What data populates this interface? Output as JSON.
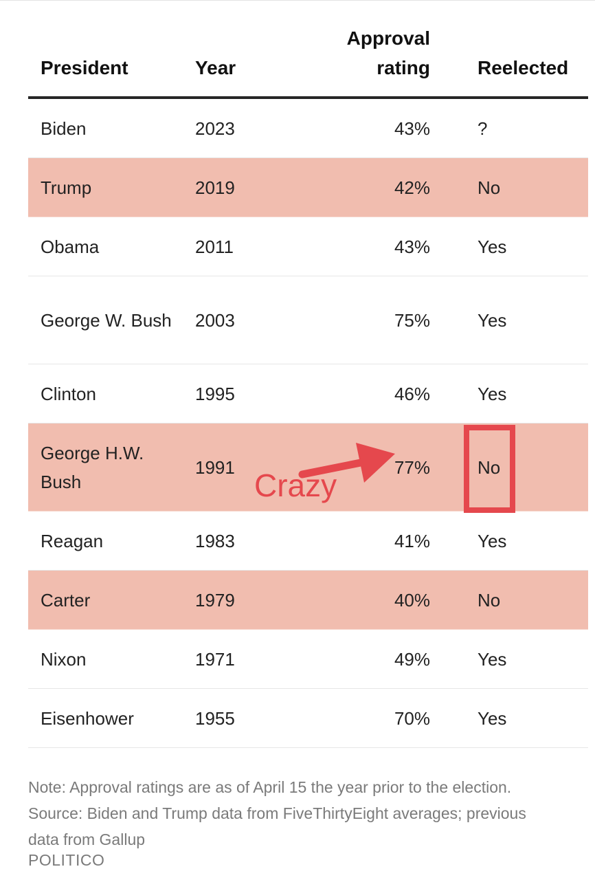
{
  "chart_data": {
    "type": "table",
    "columns": {
      "president": "President",
      "year": "Year",
      "approval_line1": "Approval",
      "approval_line2": "rating",
      "reelected": "Reelected"
    },
    "rows": [
      {
        "president": "Biden",
        "year": "2023",
        "approval": "43%",
        "reelected": "?",
        "highlight": false
      },
      {
        "president": "Trump",
        "year": "2019",
        "approval": "42%",
        "reelected": "No",
        "highlight": true
      },
      {
        "president": "Obama",
        "year": "2011",
        "approval": "43%",
        "reelected": "Yes",
        "highlight": false
      },
      {
        "president": "George W. Bush",
        "year": "2003",
        "approval": "75%",
        "reelected": "Yes",
        "highlight": false
      },
      {
        "president": "Clinton",
        "year": "1995",
        "approval": "46%",
        "reelected": "Yes",
        "highlight": false
      },
      {
        "president": "George H.W. Bush",
        "year": "1991",
        "approval": "77%",
        "reelected": "No",
        "highlight": true
      },
      {
        "president": "Reagan",
        "year": "1983",
        "approval": "41%",
        "reelected": "Yes",
        "highlight": false
      },
      {
        "president": "Carter",
        "year": "1979",
        "approval": "40%",
        "reelected": "No",
        "highlight": true
      },
      {
        "president": "Nixon",
        "year": "1971",
        "approval": "49%",
        "reelected": "Yes",
        "highlight": false
      },
      {
        "president": "Eisenhower",
        "year": "1955",
        "approval": "70%",
        "reelected": "Yes",
        "highlight": false
      }
    ],
    "notes": [
      "Note: Approval ratings are as of April 15 the year prior to the election.",
      "Source: Biden and Trump data from FiveThirtyEight averages; previous",
      "data from Gallup"
    ],
    "source_brand": "POLITICO"
  },
  "annotation": {
    "text": "Crazy",
    "color": "#e5484d"
  },
  "colors": {
    "highlight_row": "#f1bdaf",
    "annotation": "#e5484d",
    "header_rule": "#262626",
    "note_text": "#7a7a7a"
  }
}
